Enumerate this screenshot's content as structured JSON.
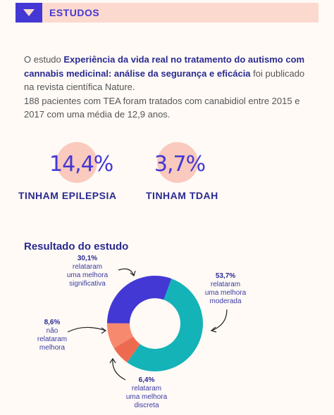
{
  "header": {
    "title": "ESTUDOS"
  },
  "intro": {
    "p1_a": "O estudo ",
    "p1_highlight": "Experiência da vida real no tratamento do autismo com cannabis medicinal: análise da segurança e eficácia",
    "p1_b": " foi publicado na revista científica Nature.",
    "p2": "188 pacientes com TEA foram tratados com canabidiol entre 2015 e 2017 com uma média de 12,9 anos."
  },
  "stats": [
    {
      "value": "14,4%",
      "label": "TINHAM  EPILEPSIA"
    },
    {
      "value": "3,7%",
      "label": "TINHAM  TDAH"
    }
  ],
  "result": {
    "title": "Resultado do estudo"
  },
  "chart_data": {
    "type": "pie",
    "categories": [
      "relataram uma melhora moderada",
      "relataram uma melhora discreta",
      "não relataram melhora",
      "relataram uma melhora significativa"
    ],
    "values": [
      53.7,
      6.4,
      8.6,
      30.1
    ],
    "colors": [
      "#13b3b8",
      "#ed6a50",
      "#f7896e",
      "#4338d4"
    ],
    "labels": [
      {
        "pct": "53,7%",
        "lines": [
          "relataram",
          "uma melhora",
          "moderada"
        ]
      },
      {
        "pct": "6,4%",
        "lines": [
          "relataram",
          "uma melhora",
          "discreta"
        ]
      },
      {
        "pct": "8,6%",
        "lines": [
          "não",
          "relataram",
          "melhora"
        ]
      },
      {
        "pct": "30,1%",
        "lines": [
          "relataram",
          "uma melhora",
          "significativa"
        ]
      }
    ]
  }
}
